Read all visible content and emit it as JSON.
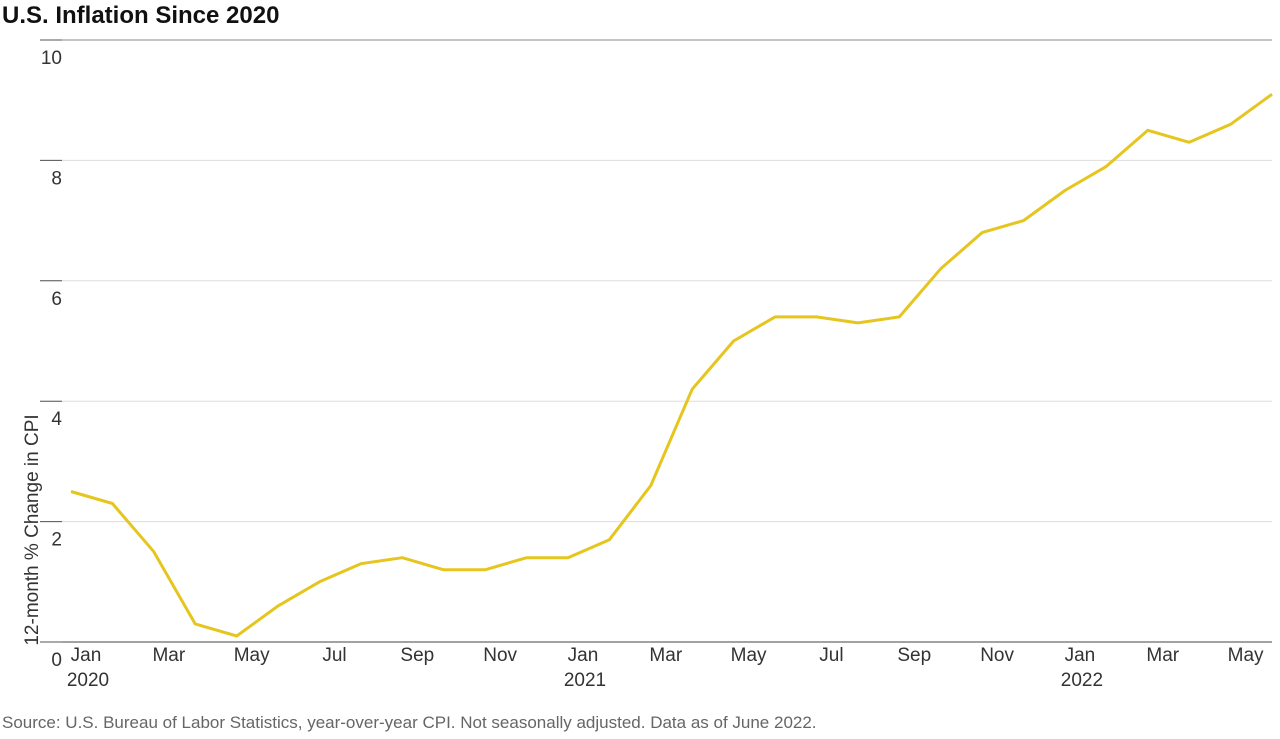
{
  "chart_data": {
    "type": "line",
    "title": "U.S. Inflation Since 2020",
    "y_label": "12-month % Change in CPI",
    "source": "Source: U.S. Bureau of Labor Statistics, year-over-year CPI. Not seasonally adjusted. Data as of June 2022.",
    "categories": [
      "Jan",
      null,
      "Mar",
      null,
      "May",
      null,
      "Jul",
      null,
      "Sep",
      null,
      "Nov",
      null,
      "Jan",
      null,
      "Mar",
      null,
      "May",
      null,
      "Jul",
      null,
      "Sep",
      null,
      "Nov",
      null,
      "Jan",
      null,
      "Mar",
      null,
      "May",
      null
    ],
    "category_years": [
      "2020",
      null,
      null,
      null,
      null,
      null,
      null,
      null,
      null,
      null,
      null,
      null,
      "2021",
      null,
      null,
      null,
      null,
      null,
      null,
      null,
      null,
      null,
      null,
      null,
      "2022",
      null,
      null,
      null,
      null,
      null
    ],
    "series": [
      {
        "name": "CPI",
        "color": "#e5c51e",
        "values": [
          2.5,
          2.3,
          1.5,
          0.3,
          0.1,
          0.6,
          1.0,
          1.3,
          1.4,
          1.2,
          1.2,
          1.4,
          1.4,
          1.7,
          2.6,
          4.2,
          5.0,
          5.4,
          5.4,
          5.3,
          5.4,
          6.2,
          6.8,
          7.0,
          7.5,
          7.9,
          8.5,
          8.3,
          8.6,
          9.1
        ]
      }
    ],
    "ylim": [
      0,
      10
    ],
    "yticks": [
      0,
      2,
      4,
      6,
      8,
      10
    ],
    "grid": true
  }
}
